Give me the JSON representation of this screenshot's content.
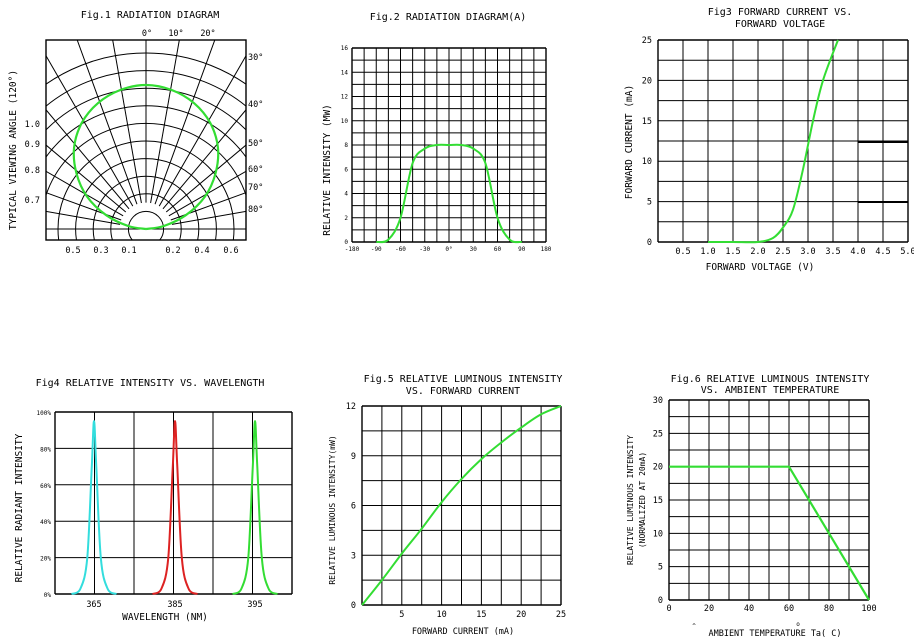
{
  "charts": {
    "fig1": {
      "title": "Fig.1 RADIATION DIAGRAM",
      "ylabel": "TYPICAL VIEWING ANGLE (120°)",
      "angle_labels": [
        "0°",
        "10°",
        "20°",
        "30°",
        "40°",
        "50°",
        "60°",
        "70°",
        "80°"
      ],
      "left_labels": [
        "1.0",
        "0.9",
        "0.8",
        "0.7"
      ],
      "bottom_labels": [
        "0.5",
        "0.3",
        "0.1",
        "0.2",
        "0.4",
        "0.6"
      ],
      "color": "#33dd33"
    },
    "fig2": {
      "title": "Fig.2 RADIATION DIAGRAM(A)",
      "ylabel": "RELATIVE INTENSITY (MW)",
      "y_ticks": [
        "0",
        "2",
        "4",
        "6",
        "8",
        "10",
        "12",
        "14",
        "16"
      ],
      "x_ticks": [
        "-180",
        "-90",
        "-60",
        "-30",
        "0°",
        "30",
        "60",
        "90",
        "180"
      ],
      "color": "#33dd33"
    },
    "fig3": {
      "title_lines": [
        "Fig3 FORWARD CURRENT VS.",
        "FORWARD VOLTAGE"
      ],
      "ylabel": "FORWARD CURRENT (mA)",
      "xlabel": "FORWARD VOLTAGE (V)",
      "y_ticks": [
        "0",
        "5",
        "10",
        "15",
        "20",
        "25"
      ],
      "x_ticks": [
        "0.5",
        "1.0",
        "1.5",
        "2.0",
        "2.5",
        "3.0",
        "3.5",
        "4.0",
        "4.5",
        "5.0"
      ],
      "color": "#33dd33"
    },
    "fig4": {
      "title": "Fig4 RELATIVE INTENSITY VS. WAVELENGTH",
      "ylabel": "RELATIVE RADIANT INTENSITY",
      "xlabel": "WAVELENGTH (NM)",
      "y_ticks": [
        "0%",
        "20%",
        "40%",
        "60%",
        "80%",
        "100%"
      ],
      "x_ticks": [
        "365",
        "385",
        "395"
      ],
      "colors": [
        "#33dddd",
        "#dd2222",
        "#33dd33"
      ]
    },
    "fig5": {
      "title_lines": [
        "Fig.5 RELATIVE LUMINOUS INTENSITY",
        "VS. FORWARD CURRENT"
      ],
      "ylabel": "RELATIVE LUMINOUS INTENSITY(mW)",
      "xlabel": "FORWARD CURRENT (mA)",
      "y_ticks": [
        "0",
        "3",
        "6",
        "9",
        "12"
      ],
      "x_ticks": [
        "5",
        "10",
        "15",
        "20",
        "25"
      ],
      "color": "#33dd33"
    },
    "fig6": {
      "title_lines": [
        "Fig.6 RELATIVE LUMINOUS INTENSITY",
        "VS. AMBIENT TEMPERATURE"
      ],
      "ylabel_lines": [
        "RELATIVE LUMINOUS INTENSITY",
        "(NORMALIZED AT 20mA)"
      ],
      "xlabel": "AMBIENT TEMPERATURE Ta( C)",
      "y_ticks": [
        "0",
        "5",
        "10",
        "15",
        "20",
        "25",
        "30"
      ],
      "x_ticks": [
        "0",
        "20",
        "40",
        "60",
        "80",
        "100"
      ],
      "color": "#33dd33"
    }
  },
  "chart_data": [
    {
      "type": "line",
      "chart": "polar radiation pattern",
      "title": "Fig.1 RADIATION DIAGRAM",
      "ylabel": "TYPICAL VIEWING ANGLE (120°)",
      "x": [
        0,
        10,
        20,
        30,
        40,
        50,
        60,
        70,
        80,
        90
      ],
      "y": [
        1.0,
        0.98,
        0.93,
        0.85,
        0.74,
        0.6,
        0.45,
        0.28,
        0.12,
        0
      ]
    },
    {
      "type": "line",
      "title": "Fig.2 RADIATION DIAGRAM(A)",
      "ylabel": "RELATIVE INTENSITY (MW)",
      "ylim": [
        0,
        16
      ],
      "x": [
        -90,
        -75,
        -60,
        -45,
        -30,
        -15,
        0,
        15,
        30,
        45,
        60,
        75,
        90
      ],
      "y": [
        0,
        0.2,
        2,
        6.5,
        7.7,
        8,
        8,
        8,
        7.7,
        6.5,
        2,
        0.2,
        0
      ]
    },
    {
      "type": "line",
      "title": "Fig3 FORWARD CURRENT VS. FORWARD VOLTAGE",
      "xlabel": "FORWARD VOLTAGE (V)",
      "ylabel": "FORWARD CURRENT (mA)",
      "xlim": [
        0,
        5.0
      ],
      "ylim": [
        0,
        25
      ],
      "x": [
        1.0,
        1.5,
        2.0,
        2.3,
        2.5,
        2.7,
        2.9,
        3.1,
        3.3,
        3.6
      ],
      "y": [
        0,
        0,
        0,
        0.5,
        1.8,
        4,
        9,
        15,
        20,
        25
      ]
    },
    {
      "type": "line",
      "title": "Fig4 RELATIVE INTENSITY VS. WAVELENGTH",
      "xlabel": "WAVELENGTH (NM)",
      "ylabel": "RELATIVE RADIANT INTENSITY",
      "ylim": [
        0,
        100
      ],
      "series": [
        {
          "values": [
            0,
            3,
            20,
            70,
            95,
            70,
            20,
            3,
            0
          ],
          "x": [
            360,
            362,
            363.5,
            364.5,
            365,
            365.5,
            366.5,
            368,
            370
          ]
        },
        {
          "values": [
            0,
            3,
            20,
            70,
            95,
            70,
            20,
            3,
            0
          ],
          "x": [
            380,
            382,
            383.5,
            384.5,
            385,
            385.5,
            386.5,
            388,
            390
          ]
        },
        {
          "values": [
            0,
            3,
            20,
            70,
            95,
            70,
            20,
            3,
            0
          ],
          "x": [
            390,
            392,
            393.5,
            394.5,
            395,
            395.5,
            396.5,
            398,
            400
          ]
        }
      ]
    },
    {
      "type": "line",
      "title": "Fig.5 RELATIVE LUMINOUS INTENSITY VS. FORWARD CURRENT",
      "xlabel": "FORWARD CURRENT (mA)",
      "ylabel": "RELATIVE LUMINOUS INTENSITY(mW)",
      "xlim": [
        0,
        25
      ],
      "ylim": [
        0,
        12
      ],
      "x": [
        0,
        2.5,
        5,
        7.5,
        10,
        12.5,
        15,
        17.5,
        20,
        22.5,
        25
      ],
      "y": [
        0,
        1.5,
        3.1,
        4.6,
        6.2,
        7.6,
        8.8,
        9.8,
        10.7,
        11.5,
        12
      ]
    },
    {
      "type": "line",
      "title": "Fig.6 RELATIVE LUMINOUS INTENSITY VS. AMBIENT TEMPERATURE",
      "xlabel": "AMBIENT TEMPERATURE Ta( C)",
      "ylabel": "RELATIVE LUMINOUS INTENSITY (NORMALIZED AT 20mA)",
      "xlim": [
        0,
        100
      ],
      "ylim": [
        0,
        30
      ],
      "x": [
        0,
        60,
        80,
        100
      ],
      "y": [
        20,
        20,
        10,
        0
      ]
    }
  ]
}
